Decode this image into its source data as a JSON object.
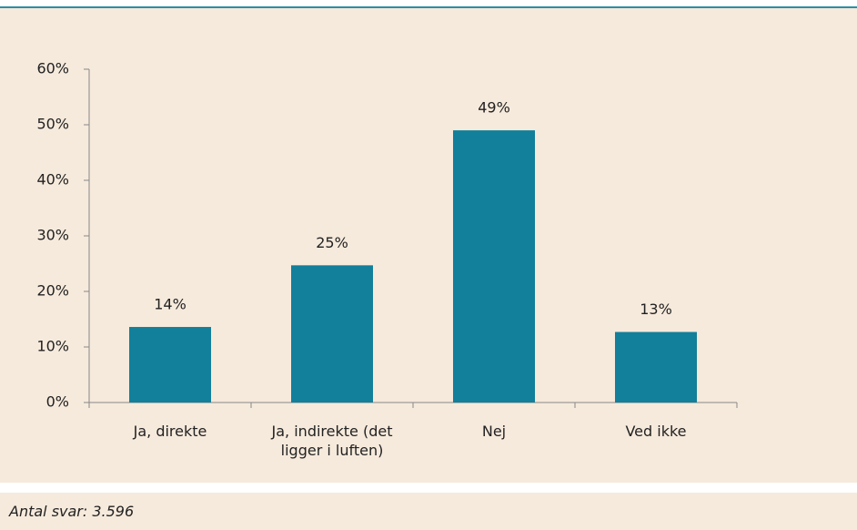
{
  "chart_data": {
    "type": "bar",
    "categories": [
      "Ja, direkte",
      "Ja, indirekte (det ligger i luften)",
      "Nej",
      "Ved ikke"
    ],
    "values": [
      13.6,
      24.7,
      49,
      12.7
    ],
    "value_labels": [
      "14%",
      "25%",
      "49%",
      "13%"
    ],
    "color": "#127f9b",
    "ylim": [
      0,
      60
    ],
    "yticks": [
      {
        "value": 0,
        "label": "0%"
      },
      {
        "value": 10,
        "label": "10%"
      },
      {
        "value": 20,
        "label": "20%"
      },
      {
        "value": 30,
        "label": "30%"
      },
      {
        "value": 40,
        "label": "40%"
      },
      {
        "value": 50,
        "label": "50%"
      },
      {
        "value": 60,
        "label": "60%"
      }
    ]
  },
  "footer": {
    "text": "Antal svar: 3.596"
  }
}
